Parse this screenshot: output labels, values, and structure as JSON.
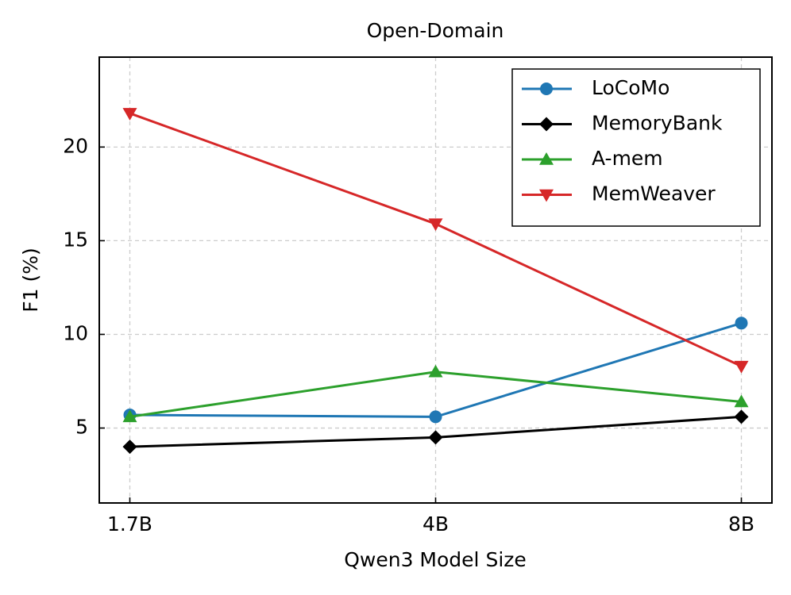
{
  "chart_data": {
    "type": "line",
    "title": "Open-Domain",
    "x_label": "Qwen3 Model Size",
    "y_label": "F1 (%)",
    "categories": [
      "1.7B",
      "4B",
      "8B"
    ],
    "series": [
      {
        "name": "LoCoMo",
        "color": "#1f77b4",
        "marker": "circle",
        "values": [
          5.7,
          5.6,
          10.6
        ]
      },
      {
        "name": "MemoryBank",
        "color": "#000000",
        "marker": "diamond",
        "values": [
          4.0,
          4.5,
          5.6
        ]
      },
      {
        "name": "A-mem",
        "color": "#2ca02c",
        "marker": "triangle-up",
        "values": [
          5.6,
          8.0,
          6.4
        ]
      },
      {
        "name": "MemWeaver",
        "color": "#d62728",
        "marker": "triangle-down",
        "values": [
          21.8,
          15.9,
          8.3
        ]
      }
    ],
    "ylim": [
      1.0,
      24.8
    ],
    "yticks": [
      5,
      10,
      15,
      20
    ],
    "grid": true,
    "legend": "upper right"
  }
}
